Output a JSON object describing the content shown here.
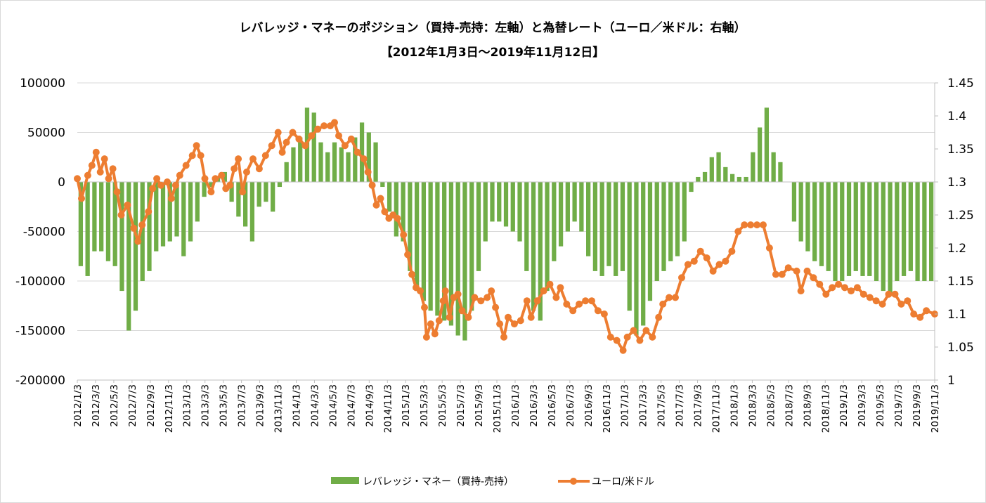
{
  "chart_data": {
    "type": "bar+line",
    "title": "レバレッジ・マネーのポジション（買持-売持：左軸）と為替レート（ユーロ／米ドル：右軸）",
    "subtitle": "【2012年1月3日～2019年11月12日】",
    "xlabel": "",
    "ylabel_left": "",
    "ylabel_right": "",
    "left_axis": {
      "min": -200000,
      "max": 100000,
      "ticks": [
        100000,
        50000,
        0,
        -50000,
        -100000,
        -150000,
        -200000
      ]
    },
    "right_axis": {
      "min": 1,
      "max": 1.45,
      "ticks": [
        1.45,
        1.4,
        1.35,
        1.3,
        1.25,
        1.2,
        1.15,
        1.1,
        1.05,
        1
      ]
    },
    "x_tick_labels": [
      "2012/1/3",
      "2012/3/3",
      "2012/5/3",
      "2012/7/3",
      "2012/9/3",
      "2012/11/3",
      "2013/1/3",
      "2013/3/3",
      "2013/5/3",
      "2013/7/3",
      "2013/9/3",
      "2013/11/3",
      "2014/1/3",
      "2014/3/3",
      "2014/5/3",
      "2014/7/3",
      "2014/9/3",
      "2014/11/3",
      "2015/1/3",
      "2015/3/3",
      "2015/5/3",
      "2015/7/3",
      "2015/9/3",
      "2015/11/3",
      "2016/1/3",
      "2016/3/3",
      "2016/5/3",
      "2016/7/3",
      "2016/9/3",
      "2016/11/3",
      "2017/1/3",
      "2017/3/3",
      "2017/5/3",
      "2017/7/3",
      "2017/9/3",
      "2017/11/3",
      "2018/1/3",
      "2018/3/3",
      "2018/5/3",
      "2018/7/3",
      "2018/9/3",
      "2018/11/3",
      "2019/1/3",
      "2019/3/3",
      "2019/5/3",
      "2019/7/3",
      "2019/9/3",
      "2019/11/3"
    ],
    "legend_position": "bottom",
    "grid": true,
    "series": [
      {
        "name": "レバレッジ・マネー（買持-売持）",
        "type": "bar",
        "axis": "left",
        "color": "#70ad47",
        "x_start": "2012-01-03",
        "x_end": "2019-11-12",
        "values": [
          -85000,
          -95000,
          -70000,
          -70000,
          -80000,
          -85000,
          -110000,
          -150000,
          -130000,
          -100000,
          -90000,
          -70000,
          -65000,
          -60000,
          -55000,
          -75000,
          -60000,
          -40000,
          -15000,
          -5000,
          5000,
          10000,
          -20000,
          -35000,
          -45000,
          -60000,
          -25000,
          -20000,
          -30000,
          -5000,
          20000,
          35000,
          45000,
          75000,
          70000,
          40000,
          30000,
          40000,
          35000,
          30000,
          45000,
          60000,
          50000,
          40000,
          -5000,
          -30000,
          -55000,
          -60000,
          -90000,
          -110000,
          -120000,
          -130000,
          -135000,
          -140000,
          -145000,
          -155000,
          -160000,
          -130000,
          -90000,
          -60000,
          -40000,
          -40000,
          -45000,
          -50000,
          -60000,
          -90000,
          -130000,
          -140000,
          -110000,
          -80000,
          -65000,
          -50000,
          -40000,
          -50000,
          -75000,
          -90000,
          -95000,
          -85000,
          -95000,
          -90000,
          -130000,
          -155000,
          -145000,
          -120000,
          -100000,
          -90000,
          -80000,
          -75000,
          -60000,
          -10000,
          5000,
          10000,
          25000,
          30000,
          15000,
          8000,
          5000,
          5000,
          30000,
          55000,
          75000,
          30000,
          20000,
          0,
          -40000,
          -60000,
          -70000,
          -80000,
          -85000,
          -90000,
          -100000,
          -100000,
          -95000,
          -90000,
          -95000,
          -95000,
          -100000,
          -110000,
          -115000,
          -100000,
          -95000,
          -90000,
          -100000,
          -100000,
          -100000
        ]
      },
      {
        "name": "ユーロ/米ドル",
        "type": "line",
        "axis": "right",
        "color": "#ed7d31",
        "points": [
          [
            "2012-01-03",
            1.305
          ],
          [
            "2012-01-17",
            1.275
          ],
          [
            "2012-02-07",
            1.31
          ],
          [
            "2012-02-21",
            1.325
          ],
          [
            "2012-03-06",
            1.345
          ],
          [
            "2012-03-20",
            1.315
          ],
          [
            "2012-04-03",
            1.335
          ],
          [
            "2012-04-17",
            1.305
          ],
          [
            "2012-05-01",
            1.32
          ],
          [
            "2012-05-15",
            1.285
          ],
          [
            "2012-05-29",
            1.25
          ],
          [
            "2012-06-19",
            1.265
          ],
          [
            "2012-07-10",
            1.23
          ],
          [
            "2012-07-24",
            1.21
          ],
          [
            "2012-08-07",
            1.235
          ],
          [
            "2012-08-28",
            1.255
          ],
          [
            "2012-09-11",
            1.29
          ],
          [
            "2012-09-25",
            1.305
          ],
          [
            "2012-10-09",
            1.295
          ],
          [
            "2012-10-30",
            1.3
          ],
          [
            "2012-11-13",
            1.275
          ],
          [
            "2012-11-27",
            1.295
          ],
          [
            "2012-12-11",
            1.31
          ],
          [
            "2013-01-01",
            1.325
          ],
          [
            "2013-01-22",
            1.34
          ],
          [
            "2013-02-05",
            1.355
          ],
          [
            "2013-02-19",
            1.34
          ],
          [
            "2013-03-05",
            1.305
          ],
          [
            "2013-03-26",
            1.285
          ],
          [
            "2013-04-09",
            1.305
          ],
          [
            "2013-04-30",
            1.31
          ],
          [
            "2013-05-14",
            1.29
          ],
          [
            "2013-05-28",
            1.295
          ],
          [
            "2013-06-11",
            1.32
          ],
          [
            "2013-06-25",
            1.335
          ],
          [
            "2013-07-09",
            1.285
          ],
          [
            "2013-07-23",
            1.315
          ],
          [
            "2013-08-13",
            1.335
          ],
          [
            "2013-09-03",
            1.32
          ],
          [
            "2013-09-24",
            1.34
          ],
          [
            "2013-10-15",
            1.355
          ],
          [
            "2013-11-05",
            1.375
          ],
          [
            "2013-11-19",
            1.345
          ],
          [
            "2013-12-03",
            1.36
          ],
          [
            "2013-12-24",
            1.375
          ],
          [
            "2014-01-14",
            1.365
          ],
          [
            "2014-02-04",
            1.355
          ],
          [
            "2014-02-25",
            1.37
          ],
          [
            "2014-03-18",
            1.38
          ],
          [
            "2014-04-08",
            1.385
          ],
          [
            "2014-04-29",
            1.385
          ],
          [
            "2014-05-13",
            1.39
          ],
          [
            "2014-05-27",
            1.37
          ],
          [
            "2014-06-17",
            1.355
          ],
          [
            "2014-07-08",
            1.365
          ],
          [
            "2014-07-29",
            1.345
          ],
          [
            "2014-08-19",
            1.335
          ],
          [
            "2014-09-02",
            1.315
          ],
          [
            "2014-09-16",
            1.295
          ],
          [
            "2014-09-30",
            1.265
          ],
          [
            "2014-10-14",
            1.275
          ],
          [
            "2014-10-28",
            1.255
          ],
          [
            "2014-11-11",
            1.245
          ],
          [
            "2014-11-25",
            1.25
          ],
          [
            "2014-12-09",
            1.245
          ],
          [
            "2014-12-30",
            1.22
          ],
          [
            "2015-01-13",
            1.19
          ],
          [
            "2015-01-27",
            1.16
          ],
          [
            "2015-02-10",
            1.14
          ],
          [
            "2015-02-24",
            1.135
          ],
          [
            "2015-03-10",
            1.11
          ],
          [
            "2015-03-17",
            1.065
          ],
          [
            "2015-03-31",
            1.085
          ],
          [
            "2015-04-14",
            1.07
          ],
          [
            "2015-04-28",
            1.09
          ],
          [
            "2015-05-12",
            1.12
          ],
          [
            "2015-05-19",
            1.135
          ],
          [
            "2015-06-02",
            1.095
          ],
          [
            "2015-06-16",
            1.125
          ],
          [
            "2015-06-30",
            1.13
          ],
          [
            "2015-07-14",
            1.105
          ],
          [
            "2015-08-04",
            1.095
          ],
          [
            "2015-08-25",
            1.125
          ],
          [
            "2015-09-15",
            1.12
          ],
          [
            "2015-10-06",
            1.125
          ],
          [
            "2015-10-20",
            1.135
          ],
          [
            "2015-11-03",
            1.11
          ],
          [
            "2015-11-17",
            1.085
          ],
          [
            "2015-12-01",
            1.065
          ],
          [
            "2015-12-15",
            1.095
          ],
          [
            "2016-01-05",
            1.085
          ],
          [
            "2016-01-26",
            1.09
          ],
          [
            "2016-02-16",
            1.12
          ],
          [
            "2016-03-01",
            1.095
          ],
          [
            "2016-03-22",
            1.12
          ],
          [
            "2016-04-12",
            1.135
          ],
          [
            "2016-05-03",
            1.145
          ],
          [
            "2016-05-24",
            1.125
          ],
          [
            "2016-06-07",
            1.14
          ],
          [
            "2016-06-28",
            1.115
          ],
          [
            "2016-07-19",
            1.105
          ],
          [
            "2016-08-09",
            1.115
          ],
          [
            "2016-08-30",
            1.12
          ],
          [
            "2016-09-20",
            1.12
          ],
          [
            "2016-10-11",
            1.105
          ],
          [
            "2016-11-01",
            1.1
          ],
          [
            "2016-11-22",
            1.065
          ],
          [
            "2016-12-13",
            1.06
          ],
          [
            "2017-01-03",
            1.045
          ],
          [
            "2017-01-17",
            1.065
          ],
          [
            "2017-02-07",
            1.075
          ],
          [
            "2017-02-28",
            1.06
          ],
          [
            "2017-03-21",
            1.075
          ],
          [
            "2017-04-11",
            1.065
          ],
          [
            "2017-05-02",
            1.095
          ],
          [
            "2017-05-16",
            1.115
          ],
          [
            "2017-06-06",
            1.125
          ],
          [
            "2017-06-27",
            1.125
          ],
          [
            "2017-07-18",
            1.155
          ],
          [
            "2017-08-08",
            1.175
          ],
          [
            "2017-08-29",
            1.18
          ],
          [
            "2017-09-19",
            1.195
          ],
          [
            "2017-10-10",
            1.185
          ],
          [
            "2017-10-31",
            1.165
          ],
          [
            "2017-11-21",
            1.175
          ],
          [
            "2017-12-12",
            1.18
          ],
          [
            "2018-01-02",
            1.195
          ],
          [
            "2018-01-23",
            1.225
          ],
          [
            "2018-02-13",
            1.235
          ],
          [
            "2018-03-06",
            1.235
          ],
          [
            "2018-03-27",
            1.235
          ],
          [
            "2018-04-17",
            1.235
          ],
          [
            "2018-05-08",
            1.2
          ],
          [
            "2018-05-29",
            1.16
          ],
          [
            "2018-06-19",
            1.16
          ],
          [
            "2018-07-10",
            1.17
          ],
          [
            "2018-08-07",
            1.165
          ],
          [
            "2018-08-21",
            1.135
          ],
          [
            "2018-09-11",
            1.165
          ],
          [
            "2018-10-02",
            1.155
          ],
          [
            "2018-10-23",
            1.145
          ],
          [
            "2018-11-13",
            1.13
          ],
          [
            "2018-12-04",
            1.14
          ],
          [
            "2018-12-25",
            1.145
          ],
          [
            "2019-01-15",
            1.14
          ],
          [
            "2019-02-05",
            1.135
          ],
          [
            "2019-02-26",
            1.14
          ],
          [
            "2019-03-19",
            1.13
          ],
          [
            "2019-04-09",
            1.125
          ],
          [
            "2019-04-30",
            1.12
          ],
          [
            "2019-05-21",
            1.115
          ],
          [
            "2019-06-11",
            1.13
          ],
          [
            "2019-07-02",
            1.13
          ],
          [
            "2019-07-23",
            1.115
          ],
          [
            "2019-08-13",
            1.12
          ],
          [
            "2019-09-03",
            1.1
          ],
          [
            "2019-09-24",
            1.095
          ],
          [
            "2019-10-15",
            1.105
          ],
          [
            "2019-11-12",
            1.1
          ]
        ]
      }
    ]
  }
}
